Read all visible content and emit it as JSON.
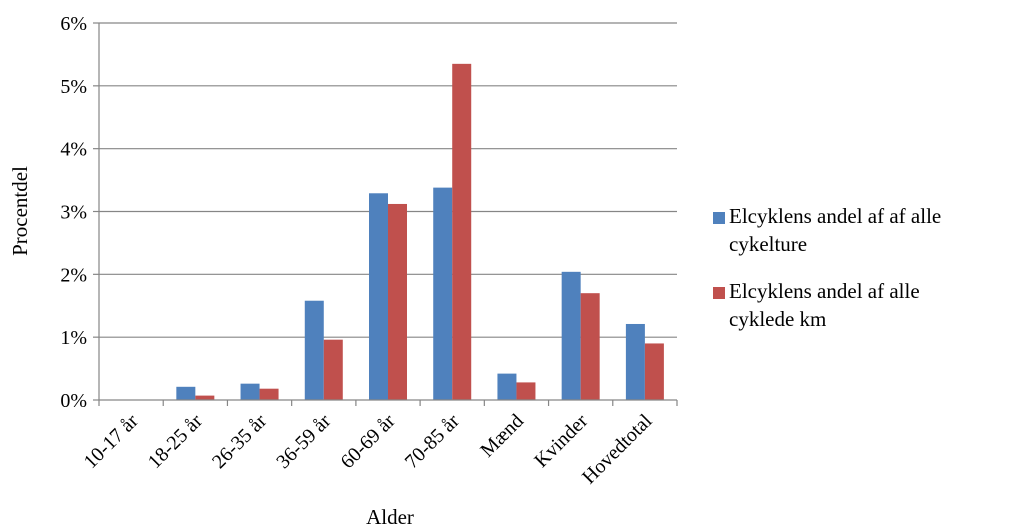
{
  "chart_data": {
    "type": "bar",
    "xlabel": "Alder",
    "ylabel": "Procentdel",
    "ylim": [
      0,
      6
    ],
    "yticks": [
      "0%",
      "1%",
      "2%",
      "3%",
      "4%",
      "5%",
      "6%"
    ],
    "grid": true,
    "legend_position": "right",
    "categories": [
      "10-17 år",
      "18-25 år",
      "26-35 år",
      "36-59 år",
      "60-69 år",
      "70-85 år",
      "Mænd",
      "Kvinder",
      "Hovedtotal"
    ],
    "series": [
      {
        "name": "Elcyklens andel af af alle cykelture",
        "name_lines": [
          "Elcyklens andel af af alle",
          "cykelture"
        ],
        "color": "#4F81BD",
        "values": [
          0,
          0.21,
          0.26,
          1.58,
          3.29,
          3.38,
          0.42,
          2.04,
          1.21
        ]
      },
      {
        "name": "Elcyklens andel af alle cyklede km",
        "name_lines": [
          "Elcyklens andel af alle",
          "cyklede km"
        ],
        "color": "#C0504D",
        "values": [
          0,
          0.07,
          0.18,
          0.96,
          3.12,
          5.35,
          0.28,
          1.7,
          0.9
        ]
      }
    ]
  }
}
